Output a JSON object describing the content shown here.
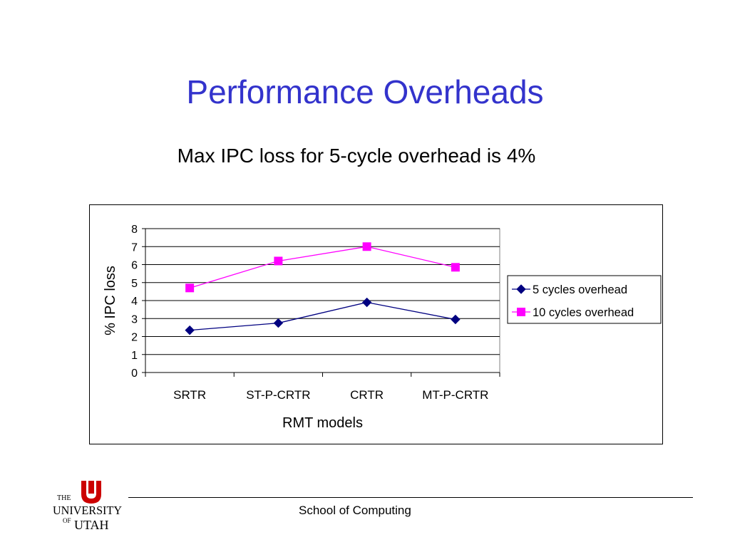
{
  "slide": {
    "title": "Performance Overheads",
    "subtitle": "Max IPC loss for 5-cycle overhead is 4%",
    "footer": "School of Computing"
  },
  "logo": {
    "text_the": "THE",
    "text_university": "UNIVERSITY",
    "text_of": "OF",
    "text_utah": "UTAH",
    "color": "#cc0000"
  },
  "chart_data": {
    "type": "line",
    "categories": [
      "SRTR",
      "ST-P-CRTR",
      "CRTR",
      "MT-P-CRTR"
    ],
    "series": [
      {
        "name": "5 cycles overhead",
        "values": [
          2.35,
          2.75,
          3.9,
          2.95
        ],
        "color": "#000080",
        "marker": "diamond"
      },
      {
        "name": "10 cycles overhead",
        "values": [
          4.7,
          6.2,
          7.0,
          5.85
        ],
        "color": "#ff00ff",
        "marker": "square"
      }
    ],
    "xlabel": "RMT models",
    "ylabel": "% IPC loss",
    "ylim": [
      0,
      8
    ],
    "yticks": [
      0,
      1,
      2,
      3,
      4,
      5,
      6,
      7,
      8
    ],
    "grid": true,
    "legend_position": "right"
  }
}
